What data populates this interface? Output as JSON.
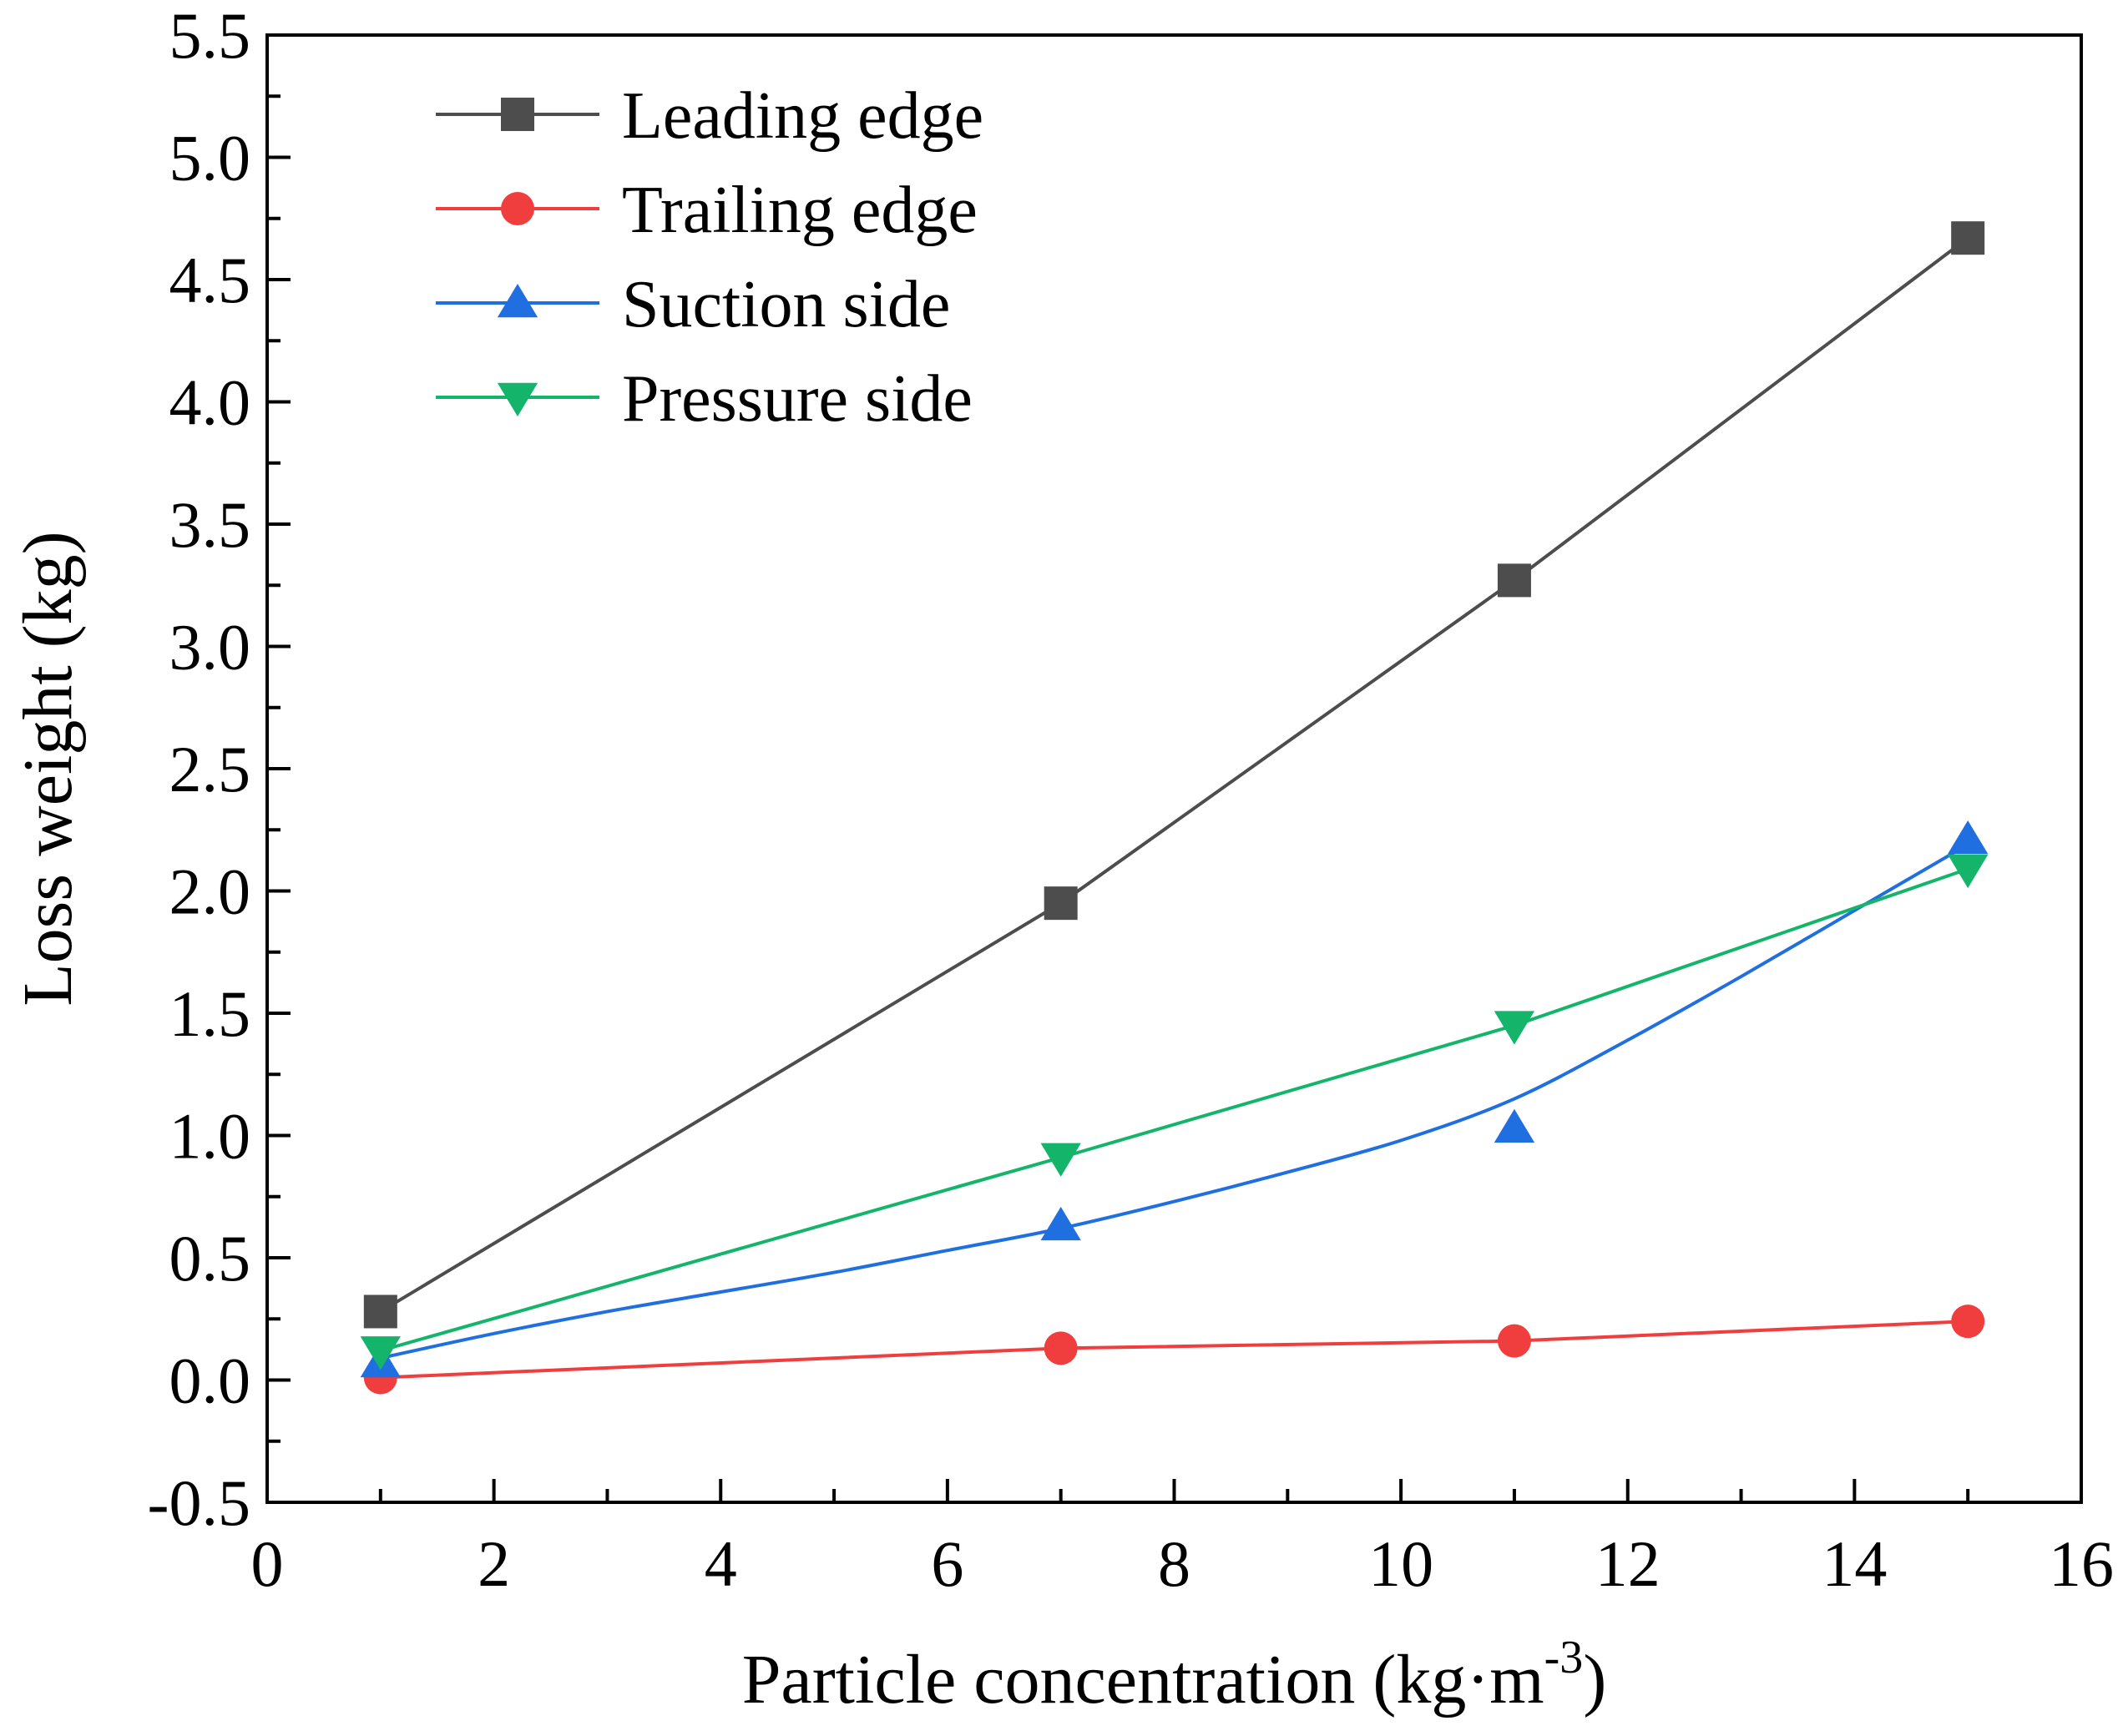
{
  "chart_data": {
    "type": "line",
    "xlabel": "Particle concentration (kg·m",
    "xlabel_sup": "-3",
    "xlabel_end": ")",
    "ylabel": "Loss weight (kg)",
    "xlim": [
      0,
      16
    ],
    "ylim": [
      -0.5,
      5.5
    ],
    "x_ticks": [
      0,
      2,
      4,
      6,
      8,
      10,
      12,
      14,
      16
    ],
    "x_tick_labels": [
      "0",
      "2",
      "4",
      "6",
      "8",
      "10",
      "12",
      "14",
      "16"
    ],
    "y_ticks": [
      -0.5,
      0.0,
      0.5,
      1.0,
      1.5,
      2.0,
      2.5,
      3.0,
      3.5,
      4.0,
      4.5,
      5.0,
      5.5
    ],
    "y_tick_labels": [
      "-0.5",
      "0.0",
      "0.5",
      "1.0",
      "1.5",
      "2.0",
      "2.5",
      "3.0",
      "3.5",
      "4.0",
      "4.5",
      "5.0",
      "5.5"
    ],
    "grid": false,
    "legend_position": "top-left",
    "x": [
      1,
      7,
      11,
      15
    ],
    "series": [
      {
        "name": "Leading edge",
        "values": [
          0.28,
          1.95,
          3.27,
          4.67
        ],
        "color": "#4d4d4d",
        "marker": "square",
        "curve": "straight"
      },
      {
        "name": "Trailing edge",
        "values": [
          0.01,
          0.13,
          0.16,
          0.24
        ],
        "color": "#f03e3e",
        "marker": "circle",
        "curve": "straight"
      },
      {
        "name": "Suction side",
        "values": [
          0.07,
          0.63,
          1.03,
          2.21
        ],
        "color": "#1f6fe0",
        "marker": "triangle-up",
        "curve": "smooth",
        "curve_points": [
          [
            1,
            0.09
          ],
          [
            2,
            0.19
          ],
          [
            3,
            0.28
          ],
          [
            4,
            0.36
          ],
          [
            5,
            0.44
          ],
          [
            6,
            0.53
          ],
          [
            7,
            0.62
          ],
          [
            8,
            0.73
          ],
          [
            9,
            0.85
          ],
          [
            10,
            0.98
          ],
          [
            11,
            1.15
          ],
          [
            12,
            1.39
          ],
          [
            13,
            1.65
          ],
          [
            14,
            1.92
          ],
          [
            15,
            2.19
          ]
        ]
      },
      {
        "name": "Pressure side",
        "values": [
          0.12,
          0.91,
          1.45,
          2.09
        ],
        "color": "#14b56a",
        "marker": "triangle-down",
        "curve": "straight"
      }
    ]
  }
}
